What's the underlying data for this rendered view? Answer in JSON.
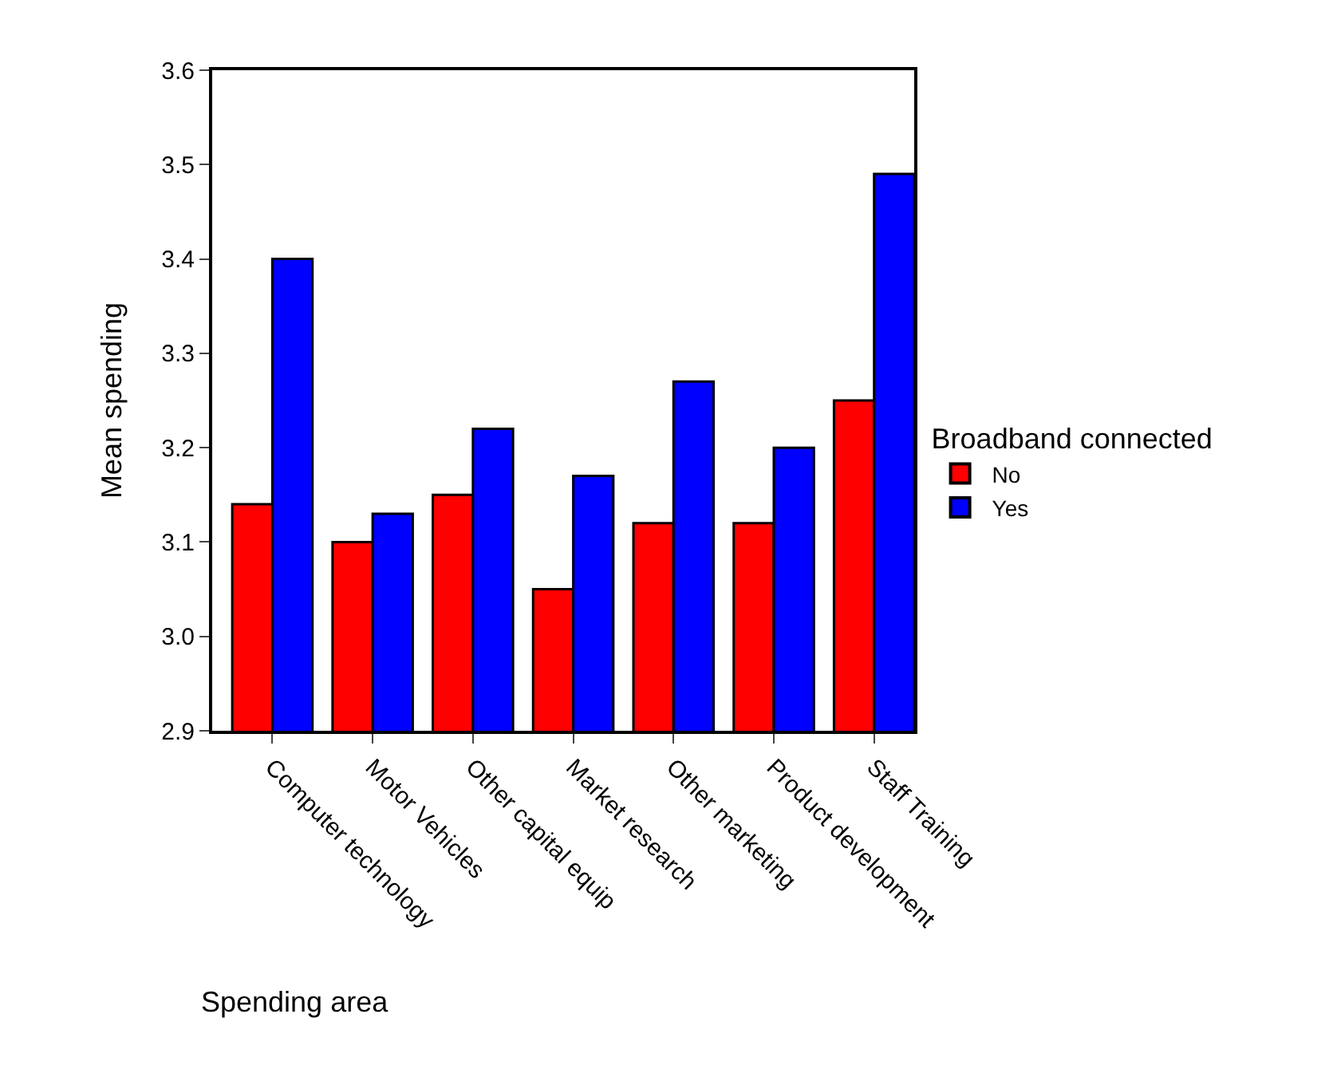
{
  "chart_data": {
    "type": "bar",
    "xlabel": "Spending area",
    "ylabel": "Mean spending",
    "legend_title": "Broadband connected",
    "categories": [
      "Computer technology",
      "Motor Vehicles",
      "Other capital equip",
      "Market research",
      "Other marketing",
      "Product development",
      "Staff Training"
    ],
    "series": [
      {
        "name": "No",
        "color": "#ff0000",
        "values": [
          3.14,
          3.1,
          3.15,
          3.05,
          3.12,
          3.12,
          3.25
        ]
      },
      {
        "name": "Yes",
        "color": "#0000ff",
        "values": [
          3.4,
          3.13,
          3.22,
          3.17,
          3.27,
          3.2,
          3.49
        ]
      }
    ],
    "ylim": [
      2.9,
      3.6
    ],
    "yticks": [
      {
        "value": 2.9,
        "label": "2.9"
      },
      {
        "value": 3.0,
        "label": "3.0"
      },
      {
        "value": 3.1,
        "label": "3.1"
      },
      {
        "value": 3.2,
        "label": "3.2"
      },
      {
        "value": 3.3,
        "label": "3.3"
      },
      {
        "value": 3.4,
        "label": "3.4"
      },
      {
        "value": 3.5,
        "label": "3.5"
      },
      {
        "value": 3.6,
        "label": "3.6"
      }
    ],
    "grid": false,
    "legend": "right"
  }
}
